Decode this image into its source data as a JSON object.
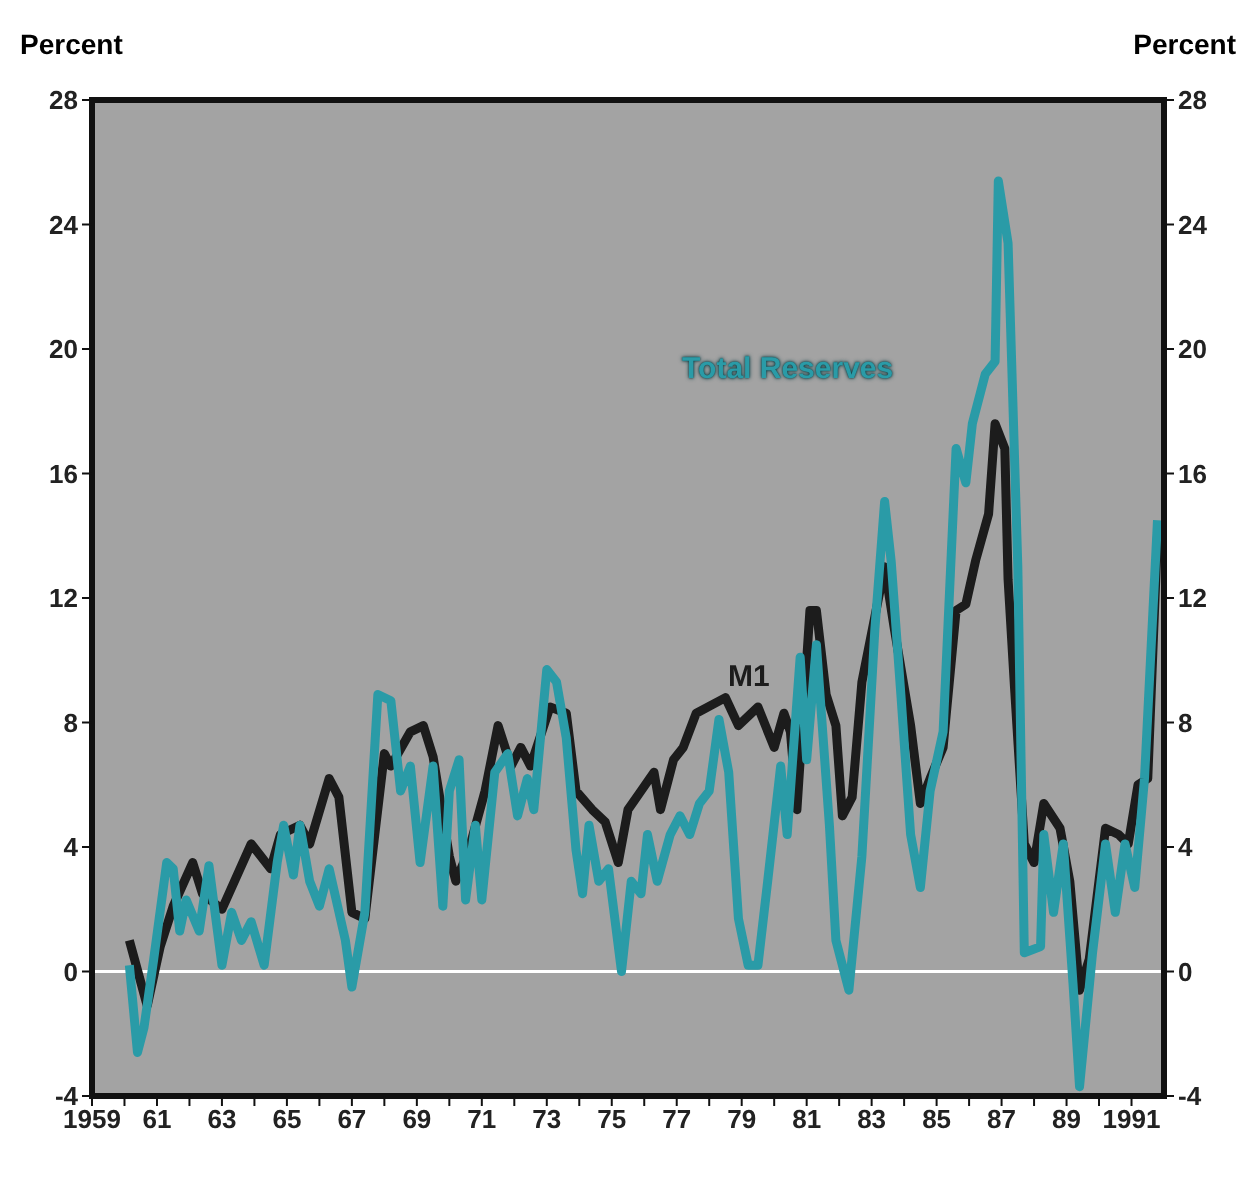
{
  "chart_data": {
    "type": "line",
    "ylabel": "Percent",
    "y2label": "Percent",
    "xlim": [
      1959,
      1992
    ],
    "xticks": [
      {
        "value": 1959,
        "label": "1959"
      },
      {
        "value": 1960,
        "label": null
      },
      {
        "value": 1961,
        "label": "61"
      },
      {
        "value": 1962,
        "label": null
      },
      {
        "value": 1963,
        "label": "63"
      },
      {
        "value": 1964,
        "label": null
      },
      {
        "value": 1965,
        "label": "65"
      },
      {
        "value": 1966,
        "label": null
      },
      {
        "value": 1967,
        "label": "67"
      },
      {
        "value": 1968,
        "label": null
      },
      {
        "value": 1969,
        "label": "69"
      },
      {
        "value": 1970,
        "label": null
      },
      {
        "value": 1971,
        "label": "71"
      },
      {
        "value": 1972,
        "label": null
      },
      {
        "value": 1973,
        "label": "73"
      },
      {
        "value": 1974,
        "label": null
      },
      {
        "value": 1975,
        "label": "75"
      },
      {
        "value": 1976,
        "label": null
      },
      {
        "value": 1977,
        "label": "77"
      },
      {
        "value": 1978,
        "label": null
      },
      {
        "value": 1979,
        "label": "79"
      },
      {
        "value": 1980,
        "label": null
      },
      {
        "value": 1981,
        "label": "81"
      },
      {
        "value": 1982,
        "label": null
      },
      {
        "value": 1983,
        "label": "83"
      },
      {
        "value": 1984,
        "label": null
      },
      {
        "value": 1985,
        "label": "85"
      },
      {
        "value": 1986,
        "label": null
      },
      {
        "value": 1987,
        "label": "87"
      },
      {
        "value": 1988,
        "label": null
      },
      {
        "value": 1989,
        "label": "89"
      },
      {
        "value": 1990,
        "label": null
      },
      {
        "value": 1991,
        "label": "1991"
      }
    ],
    "ylim": [
      -4,
      28
    ],
    "yticks": [
      -4,
      0,
      4,
      8,
      12,
      16,
      20,
      24,
      28
    ],
    "y2lim": [
      -4,
      28
    ],
    "y2ticks": [
      -4,
      0,
      4,
      8,
      12,
      16,
      20,
      24,
      28
    ],
    "marker": "none",
    "line_style": "solid",
    "ref_lines": [
      {
        "axis": "y",
        "value": 0,
        "color": "#ffffff"
      }
    ],
    "series": [
      {
        "name": "M1",
        "color": "#1c1c1c",
        "x": [
          1960.15,
          1960.7,
          1961.1,
          1961.5,
          1962.1,
          1962.4,
          1963.0,
          1963.9,
          1964.5,
          1964.8,
          1965.4,
          1965.7,
          1966.3,
          1966.6,
          1967.0,
          1967.4,
          1968.0,
          1968.2,
          1968.8,
          1969.2,
          1969.5,
          1970.0,
          1970.2,
          1970.6,
          1971.1,
          1971.5,
          1971.9,
          1972.2,
          1972.5,
          1973.1,
          1973.6,
          1973.9,
          1974.4,
          1974.8,
          1975.2,
          1975.5,
          1975.9,
          1976.3,
          1976.5,
          1976.9,
          1977.2,
          1977.6,
          1978.5,
          1978.9,
          1979.5,
          1980.0,
          1980.3,
          1980.5,
          1980.7,
          1981.1,
          1981.3,
          1981.6,
          1981.9,
          1982.1,
          1982.4,
          1982.7,
          1983.1,
          1983.4,
          1983.7,
          1984.2,
          1984.5,
          1984.8,
          1985.2,
          1985.6,
          1985.9,
          1986.2,
          1986.6,
          1986.8,
          1987.1,
          1987.2,
          1987.4,
          1987.7,
          1988.0,
          1988.3,
          1988.8,
          1989.1,
          1989.4,
          1989.7,
          1990.2,
          1990.6,
          1990.9,
          1991.2,
          1991.5,
          1991.8
        ],
        "values": [
          1.0,
          -1.1,
          0.8,
          2.1,
          3.5,
          2.5,
          2.0,
          4.1,
          3.3,
          4.4,
          4.7,
          4.1,
          6.2,
          5.6,
          1.9,
          1.7,
          7.0,
          6.6,
          7.7,
          7.9,
          6.9,
          3.7,
          2.9,
          3.9,
          5.8,
          7.9,
          6.6,
          7.2,
          6.6,
          8.5,
          8.3,
          5.8,
          5.2,
          4.8,
          3.5,
          5.2,
          5.8,
          6.4,
          5.2,
          6.8,
          7.2,
          8.3,
          8.8,
          7.9,
          8.5,
          7.2,
          8.3,
          7.7,
          5.2,
          11.6,
          11.6,
          8.9,
          7.9,
          5.0,
          5.6,
          9.3,
          11.4,
          13.0,
          11.0,
          7.9,
          5.4,
          6.2,
          7.2,
          11.6,
          11.8,
          13.2,
          14.7,
          17.6,
          16.8,
          12.6,
          9.1,
          4.1,
          3.5,
          5.4,
          4.6,
          2.9,
          -0.6,
          0.4,
          4.6,
          4.4,
          4.1,
          6.0,
          6.2,
          14.0
        ]
      },
      {
        "name": "Total Reserves",
        "color": "#2a9ba7",
        "x": [
          1960.15,
          1960.4,
          1960.6,
          1960.9,
          1961.3,
          1961.5,
          1961.7,
          1961.9,
          1962.3,
          1962.6,
          1963.0,
          1963.3,
          1963.6,
          1963.9,
          1964.3,
          1964.7,
          1964.9,
          1965.2,
          1965.4,
          1965.7,
          1966.0,
          1966.3,
          1966.8,
          1967.0,
          1967.4,
          1967.8,
          1968.2,
          1968.5,
          1968.8,
          1969.1,
          1969.5,
          1969.8,
          1970.0,
          1970.3,
          1970.5,
          1970.8,
          1971.0,
          1971.4,
          1971.8,
          1972.1,
          1972.4,
          1972.6,
          1973.0,
          1973.3,
          1973.6,
          1973.9,
          1974.1,
          1974.3,
          1974.6,
          1974.9,
          1975.3,
          1975.6,
          1975.9,
          1976.1,
          1976.4,
          1976.8,
          1977.1,
          1977.4,
          1977.7,
          1978.0,
          1978.3,
          1978.6,
          1978.9,
          1979.2,
          1979.5,
          1979.8,
          1980.2,
          1980.4,
          1980.8,
          1981.0,
          1981.3,
          1981.7,
          1981.9,
          1982.3,
          1982.7,
          1983.1,
          1983.4,
          1983.6,
          1983.9,
          1984.2,
          1984.5,
          1984.8,
          1985.2,
          1985.6,
          1985.9,
          1986.1,
          1986.5,
          1986.8,
          1986.9,
          1987.2,
          1987.5,
          1987.7,
          1988.2,
          1988.3,
          1988.6,
          1988.9,
          1989.2,
          1989.4,
          1989.8,
          1990.2,
          1990.5,
          1990.8,
          1991.1,
          1991.4,
          1991.8
        ],
        "values": [
          0.2,
          -2.6,
          -1.8,
          0.4,
          3.5,
          3.3,
          1.3,
          2.3,
          1.3,
          3.4,
          0.2,
          1.9,
          1.0,
          1.6,
          0.2,
          3.5,
          4.7,
          3.1,
          4.7,
          2.9,
          2.1,
          3.3,
          1.0,
          -0.5,
          1.9,
          8.9,
          8.7,
          5.8,
          6.6,
          3.5,
          6.6,
          2.1,
          5.8,
          6.8,
          2.3,
          4.7,
          2.3,
          6.4,
          7.0,
          5.0,
          6.2,
          5.2,
          9.7,
          9.3,
          7.5,
          3.9,
          2.5,
          4.7,
          2.9,
          3.3,
          0.0,
          2.9,
          2.5,
          4.4,
          2.9,
          4.4,
          5.0,
          4.4,
          5.4,
          5.8,
          8.1,
          6.4,
          1.7,
          0.2,
          0.2,
          2.9,
          6.6,
          4.4,
          10.1,
          6.8,
          10.5,
          4.7,
          1.0,
          -0.6,
          3.7,
          11.0,
          15.1,
          13.2,
          8.9,
          4.4,
          2.7,
          5.8,
          7.7,
          16.8,
          15.7,
          17.6,
          19.2,
          19.6,
          25.4,
          23.4,
          13.0,
          0.6,
          0.8,
          4.4,
          1.9,
          4.1,
          -0.4,
          -3.7,
          0.6,
          4.1,
          1.9,
          4.1,
          2.7,
          6.2,
          14.5
        ]
      }
    ]
  }
}
